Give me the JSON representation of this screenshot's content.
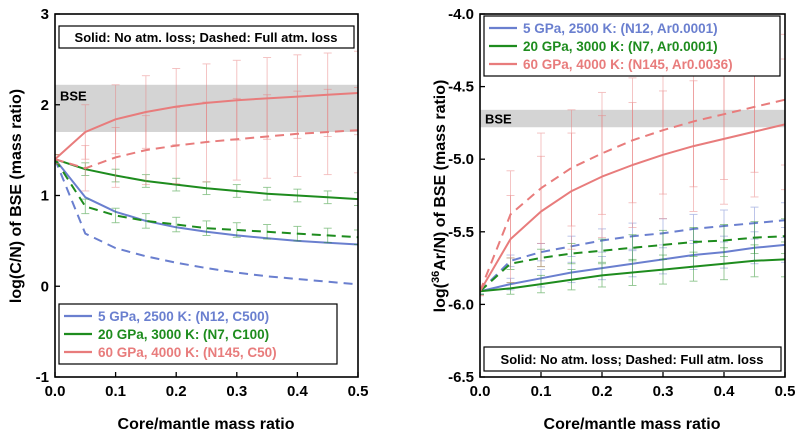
{
  "chart_data": [
    {
      "type": "line",
      "xlabel": "Core/mantle mass ratio",
      "ylabel": "log(C/N) of BSE (mass ratio)",
      "xlim": [
        0,
        0.5
      ],
      "ylim": [
        -1,
        3
      ],
      "xticks": [
        "0.0",
        "0.1",
        "0.2",
        "0.3",
        "0.4",
        "0.5"
      ],
      "yticks": [
        "-1",
        "0",
        "1",
        "2",
        "3"
      ],
      "note": "Solid: No atm. loss; Dashed: Full atm. loss",
      "bse_band": {
        "label": "BSE",
        "range": [
          1.7,
          2.22
        ]
      },
      "legend_position": "bottom-left",
      "series": [
        {
          "name": "5 GPa, 2500 K: (N12, C500)",
          "color": "#6a7fcf",
          "style": "solid",
          "x": [
            0,
            0.05,
            0.1,
            0.15,
            0.2,
            0.25,
            0.3,
            0.35,
            0.4,
            0.45,
            0.5
          ],
          "y": [
            1.4,
            0.98,
            0.82,
            0.72,
            0.65,
            0.6,
            0.56,
            0.53,
            0.5,
            0.48,
            0.46
          ],
          "errors": false
        },
        {
          "name": "5 GPa, 2500 K: (N12, C500)",
          "color": "#6a7fcf",
          "style": "dashed",
          "x": [
            0,
            0.05,
            0.1,
            0.15,
            0.2,
            0.25,
            0.3,
            0.35,
            0.4,
            0.45,
            0.5
          ],
          "y": [
            1.4,
            0.58,
            0.42,
            0.33,
            0.26,
            0.2,
            0.15,
            0.11,
            0.08,
            0.05,
            0.02
          ],
          "errors": false
        },
        {
          "name": "20 GPa, 3000 K: (N7, C100)",
          "color": "#1e8c1e",
          "style": "solid",
          "x": [
            0,
            0.05,
            0.1,
            0.15,
            0.2,
            0.25,
            0.3,
            0.35,
            0.4,
            0.45,
            0.5
          ],
          "y": [
            1.4,
            1.29,
            1.22,
            1.16,
            1.12,
            1.08,
            1.05,
            1.02,
            1.0,
            0.98,
            0.96
          ],
          "errors": true,
          "err": [
            0.05,
            0.07,
            0.07,
            0.07,
            0.07,
            0.07,
            0.07,
            0.07,
            0.07,
            0.07,
            0.07
          ]
        },
        {
          "name": "20 GPa, 3000 K: (N7, C100)",
          "color": "#1e8c1e",
          "style": "dashed",
          "x": [
            0,
            0.05,
            0.1,
            0.15,
            0.2,
            0.25,
            0.3,
            0.35,
            0.4,
            0.45,
            0.5
          ],
          "y": [
            1.4,
            0.88,
            0.78,
            0.72,
            0.68,
            0.64,
            0.62,
            0.6,
            0.58,
            0.56,
            0.54
          ],
          "errors": true,
          "err": [
            0.05,
            0.08,
            0.08,
            0.08,
            0.08,
            0.08,
            0.08,
            0.08,
            0.08,
            0.08,
            0.08
          ]
        },
        {
          "name": "60 GPa, 4000 K: (N145, C50)",
          "color": "#e87c7c",
          "style": "solid",
          "x": [
            0,
            0.05,
            0.1,
            0.15,
            0.2,
            0.25,
            0.3,
            0.35,
            0.4,
            0.45,
            0.5
          ],
          "y": [
            1.4,
            1.7,
            1.84,
            1.92,
            1.98,
            2.02,
            2.05,
            2.07,
            2.09,
            2.11,
            2.13
          ],
          "errors": true,
          "err": [
            0.05,
            0.3,
            0.38,
            0.4,
            0.42,
            0.43,
            0.44,
            0.45,
            0.46,
            0.46,
            0.46
          ]
        },
        {
          "name": "60 GPa, 4000 K: (N145, C50)",
          "color": "#e87c7c",
          "style": "dashed",
          "x": [
            0,
            0.05,
            0.1,
            0.15,
            0.2,
            0.25,
            0.3,
            0.35,
            0.4,
            0.45,
            0.5
          ],
          "y": [
            1.4,
            1.3,
            1.42,
            1.5,
            1.55,
            1.59,
            1.62,
            1.65,
            1.68,
            1.7,
            1.72
          ],
          "errors": true,
          "err": [
            0.05,
            0.25,
            0.33,
            0.38,
            0.42,
            0.44,
            0.45,
            0.46,
            0.47,
            0.47,
            0.47
          ]
        }
      ]
    },
    {
      "type": "line",
      "xlabel": "Core/mantle mass ratio",
      "ylabel_prefix": "log(",
      "ylabel_sup": "36",
      "ylabel_suffix": "Ar/N) of BSE (mass ratio)",
      "xlim": [
        0,
        0.5
      ],
      "ylim": [
        -6.5,
        -4.0
      ],
      "xticks": [
        "0.0",
        "0.1",
        "0.2",
        "0.3",
        "0.4",
        "0.5"
      ],
      "yticks": [
        "-4.0",
        "-4.5",
        "-5.0",
        "-5.5",
        "-6.0",
        "-6.5"
      ],
      "note": "Solid: No atm. loss; Dashed: Full atm. loss",
      "bse_band": {
        "label": "BSE",
        "range": [
          -4.78,
          -4.66
        ]
      },
      "legend_position": "top-left",
      "series": [
        {
          "name": "5 GPa, 2500 K: (N12, Ar0.0001)",
          "color": "#6a7fcf",
          "style": "solid",
          "x": [
            0,
            0.05,
            0.1,
            0.15,
            0.2,
            0.25,
            0.3,
            0.35,
            0.4,
            0.45,
            0.5
          ],
          "y": [
            -5.91,
            -5.86,
            -5.82,
            -5.78,
            -5.75,
            -5.72,
            -5.69,
            -5.66,
            -5.64,
            -5.61,
            -5.59
          ],
          "errors": true,
          "err": [
            0.02,
            0.04,
            0.06,
            0.07,
            0.08,
            0.09,
            0.1,
            0.1,
            0.11,
            0.11,
            0.12
          ]
        },
        {
          "name": "5 GPa, 2500 K: (N12, Ar0.0001)",
          "color": "#6a7fcf",
          "style": "dashed",
          "x": [
            0,
            0.05,
            0.1,
            0.15,
            0.2,
            0.25,
            0.3,
            0.35,
            0.4,
            0.45,
            0.5
          ],
          "y": [
            -5.91,
            -5.7,
            -5.64,
            -5.6,
            -5.56,
            -5.53,
            -5.51,
            -5.48,
            -5.46,
            -5.44,
            -5.42
          ],
          "errors": true,
          "err": [
            0.02,
            0.04,
            0.06,
            0.07,
            0.08,
            0.09,
            0.1,
            0.1,
            0.11,
            0.11,
            0.12
          ]
        },
        {
          "name": "20 GPa, 3000 K: (N7, Ar0.0001)",
          "color": "#1e8c1e",
          "style": "solid",
          "x": [
            0,
            0.05,
            0.1,
            0.15,
            0.2,
            0.25,
            0.3,
            0.35,
            0.4,
            0.45,
            0.5
          ],
          "y": [
            -5.91,
            -5.89,
            -5.86,
            -5.83,
            -5.8,
            -5.78,
            -5.76,
            -5.74,
            -5.72,
            -5.7,
            -5.69
          ],
          "errors": true,
          "err": [
            0.02,
            0.04,
            0.06,
            0.07,
            0.08,
            0.09,
            0.1,
            0.1,
            0.11,
            0.11,
            0.12
          ]
        },
        {
          "name": "20 GPa, 3000 K: (N7, Ar0.0001)",
          "color": "#1e8c1e",
          "style": "dashed",
          "x": [
            0,
            0.05,
            0.1,
            0.15,
            0.2,
            0.25,
            0.3,
            0.35,
            0.4,
            0.45,
            0.5
          ],
          "y": [
            -5.91,
            -5.72,
            -5.68,
            -5.65,
            -5.63,
            -5.61,
            -5.59,
            -5.57,
            -5.56,
            -5.54,
            -5.53
          ],
          "errors": true,
          "err": [
            0.02,
            0.04,
            0.06,
            0.07,
            0.08,
            0.09,
            0.1,
            0.1,
            0.11,
            0.11,
            0.12
          ]
        },
        {
          "name": "60 GPa, 4000 K: (N145, Ar0.0036)",
          "color": "#e87c7c",
          "style": "solid",
          "x": [
            0,
            0.05,
            0.1,
            0.15,
            0.2,
            0.25,
            0.3,
            0.35,
            0.4,
            0.45,
            0.5
          ],
          "y": [
            -5.91,
            -5.55,
            -5.36,
            -5.22,
            -5.12,
            -5.04,
            -4.97,
            -4.91,
            -4.86,
            -4.81,
            -4.76
          ],
          "errors": true,
          "err": [
            0.03,
            0.3,
            0.38,
            0.4,
            0.42,
            0.43,
            0.44,
            0.45,
            0.45,
            0.45,
            0.45
          ]
        },
        {
          "name": "60 GPa, 4000 K: (N145, Ar0.0036)",
          "color": "#e87c7c",
          "style": "dashed",
          "x": [
            0,
            0.05,
            0.1,
            0.15,
            0.2,
            0.25,
            0.3,
            0.35,
            0.4,
            0.45,
            0.5
          ],
          "y": [
            -5.91,
            -5.38,
            -5.2,
            -5.06,
            -4.96,
            -4.87,
            -4.8,
            -4.74,
            -4.69,
            -4.64,
            -4.59
          ],
          "errors": true,
          "err": [
            0.03,
            0.3,
            0.38,
            0.4,
            0.42,
            0.43,
            0.44,
            0.45,
            0.45,
            0.45,
            0.45
          ]
        }
      ]
    }
  ]
}
